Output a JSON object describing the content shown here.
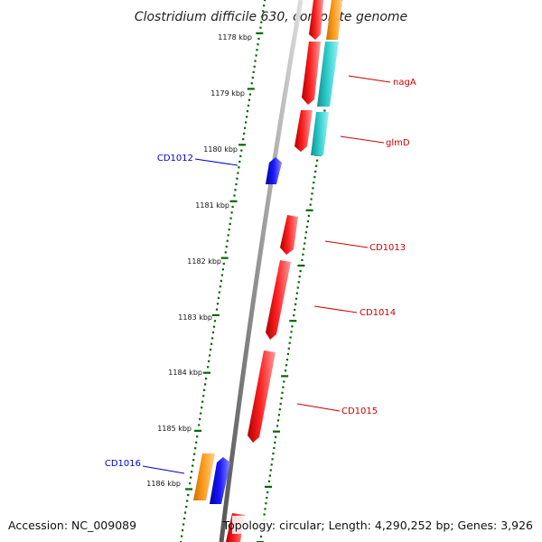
{
  "title": "Clostridium difficile 630, complete genome",
  "footer": {
    "accession": "Accession: NC_009089",
    "topology": "Topology: circular; Length: 4,290,252 bp; Genes: 3,926"
  },
  "scale": {
    "unit": "kbp",
    "ticks": [
      "1178 kbp",
      "1179 kbp",
      "1180 kbp",
      "1181 kbp",
      "1182 kbp",
      "1183 kbp",
      "1184 kbp",
      "1185 kbp",
      "1186 kbp"
    ]
  },
  "gene_labels": [
    {
      "name": "nagA",
      "strand": "reverse"
    },
    {
      "name": "glmD",
      "strand": "reverse"
    },
    {
      "name": "CD1012",
      "strand": "forward"
    },
    {
      "name": "CD1013",
      "strand": "reverse"
    },
    {
      "name": "CD1014",
      "strand": "reverse"
    },
    {
      "name": "CD1015",
      "strand": "reverse"
    },
    {
      "name": "CD1016",
      "strand": "forward"
    }
  ],
  "colors": {
    "reverse_label": "#cc0000",
    "forward_label": "#0000cc",
    "backbone": "#888888",
    "tick": "#006600",
    "cds_red": "#ff0000",
    "cds_blue": "#0000ff",
    "orange": "#ff9900",
    "cyan": "#33cccc"
  }
}
